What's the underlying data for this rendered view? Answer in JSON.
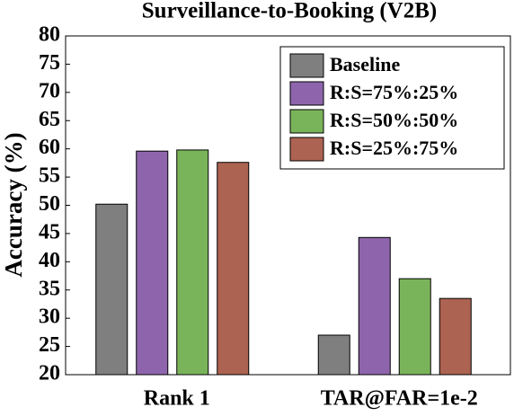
{
  "chart_data": {
    "type": "bar",
    "title": "Surveillance-to-Booking (V2B)",
    "y_label": "Accuracy (%)",
    "categories": [
      "Rank 1",
      "TAR@FAR=1e-2"
    ],
    "series": [
      {
        "name": "Baseline",
        "color": "#7f7f7f",
        "values": [
          50.2,
          27.0
        ]
      },
      {
        "name": "R:S=75%:25%",
        "color": "#8e65ac",
        "values": [
          59.6,
          44.3
        ]
      },
      {
        "name": "R:S=50%:50%",
        "color": "#7ab45a",
        "values": [
          59.8,
          37.0
        ]
      },
      {
        "name": "R:S=25%:75%",
        "color": "#ad6351",
        "values": [
          57.6,
          33.5
        ]
      }
    ],
    "ylim": [
      20,
      80
    ],
    "yticks": [
      20,
      25,
      30,
      35,
      40,
      45,
      50,
      55,
      60,
      65,
      70,
      75,
      80
    ],
    "legend": "upper right"
  }
}
